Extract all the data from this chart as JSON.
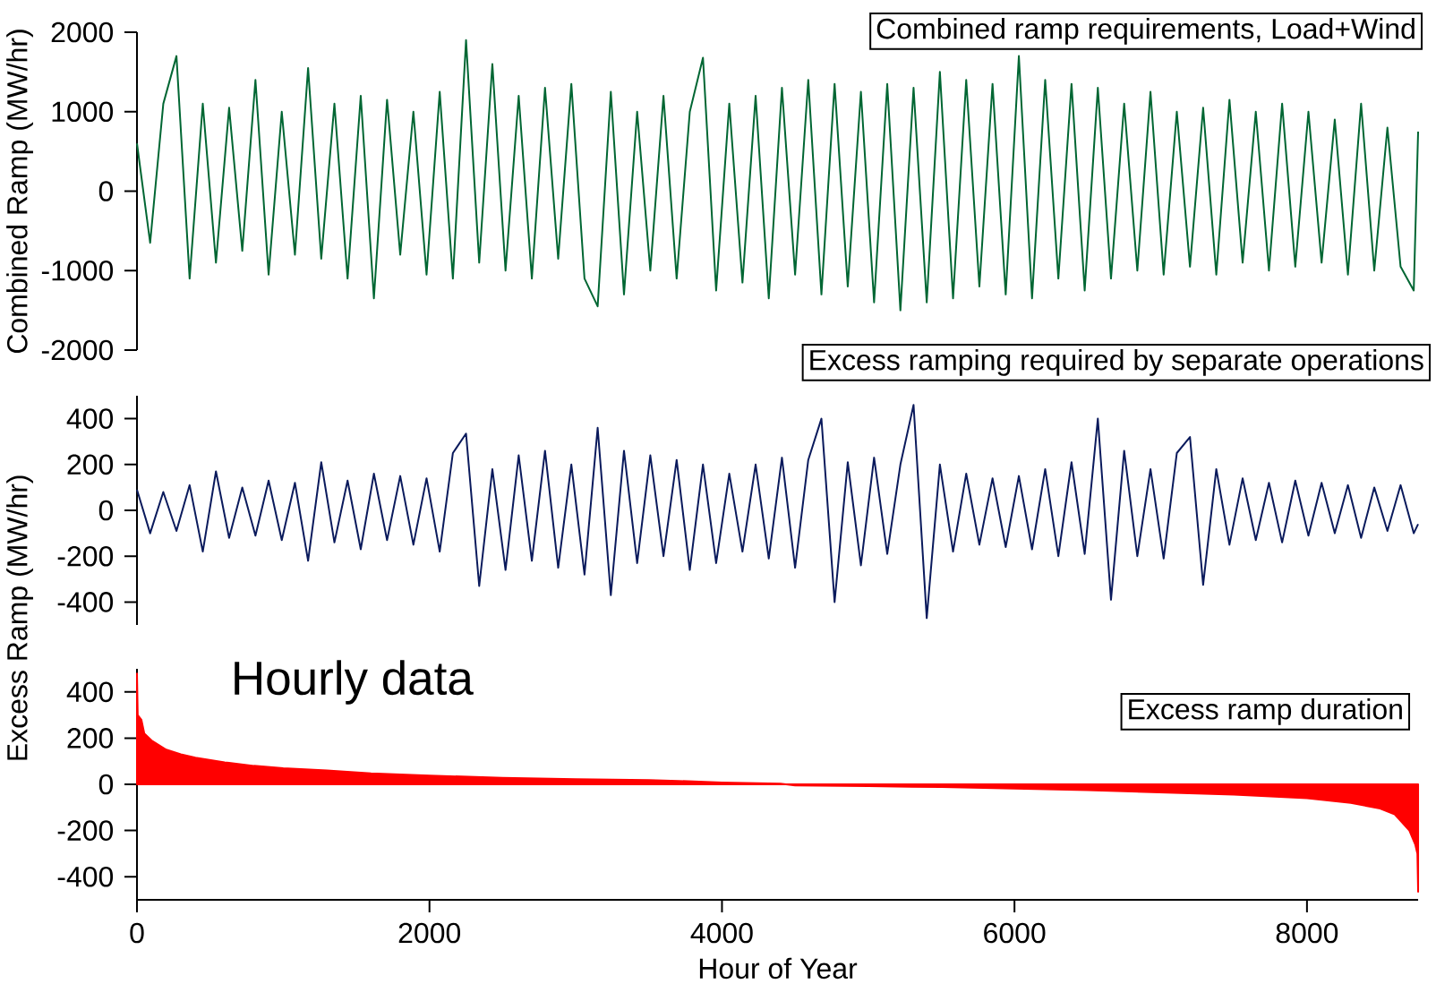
{
  "chart_data": [
    {
      "type": "line",
      "ylabel": "Combined Ramp (MW/hr)",
      "annotations": [
        "Combined ramp requirements, Load+Wind"
      ],
      "xticks": [
        0,
        2000,
        4000,
        6000,
        8000
      ],
      "ylim": [
        -2000,
        2000
      ],
      "yticks": [
        -2000,
        -1000,
        0,
        1000,
        2000
      ],
      "tick_labels": "y",
      "x": [
        0,
        90,
        180,
        270,
        360,
        450,
        540,
        630,
        720,
        810,
        900,
        990,
        1080,
        1170,
        1260,
        1350,
        1440,
        1530,
        1620,
        1710,
        1800,
        1890,
        1980,
        2070,
        2160,
        2250,
        2340,
        2430,
        2520,
        2610,
        2700,
        2790,
        2880,
        2970,
        3060,
        3150,
        3240,
        3330,
        3420,
        3510,
        3600,
        3690,
        3780,
        3870,
        3960,
        4050,
        4140,
        4230,
        4320,
        4410,
        4500,
        4590,
        4680,
        4770,
        4860,
        4950,
        5040,
        5130,
        5220,
        5310,
        5400,
        5490,
        5580,
        5670,
        5760,
        5850,
        5940,
        6030,
        6120,
        6210,
        6300,
        6390,
        6480,
        6570,
        6660,
        6750,
        6840,
        6930,
        7020,
        7110,
        7200,
        7290,
        7380,
        7470,
        7560,
        7650,
        7740,
        7830,
        7920,
        8010,
        8100,
        8190,
        8280,
        8370,
        8460,
        8550,
        8640,
        8730,
        8760
      ],
      "series": [
        {
          "color": "#006633",
          "values": [
            600,
            -650,
            1100,
            1700,
            -1100,
            1100,
            -900,
            1050,
            -750,
            1400,
            -1050,
            1000,
            -800,
            1550,
            -850,
            1100,
            -1100,
            1200,
            -1350,
            1150,
            -800,
            1000,
            -1050,
            1250,
            -1100,
            1900,
            -900,
            1600,
            -1000,
            1200,
            -1100,
            1300,
            -850,
            1350,
            -1100,
            -1450,
            1250,
            -1300,
            1000,
            -1000,
            1200,
            -1100,
            1000,
            1680,
            -1250,
            1100,
            -1150,
            1200,
            -1350,
            1300,
            -1050,
            1400,
            -1300,
            1350,
            -1200,
            1250,
            -1400,
            1350,
            -1500,
            1300,
            -1400,
            1500,
            -1350,
            1400,
            -1200,
            1350,
            -1300,
            1700,
            -1350,
            1400,
            -1100,
            1350,
            -1250,
            1300,
            -1100,
            1100,
            -1000,
            1250,
            -1050,
            1000,
            -950,
            1050,
            -1050,
            1150,
            -900,
            1000,
            -1000,
            1100,
            -950,
            1000,
            -900,
            900,
            -1050,
            1100,
            -1000,
            800,
            -950,
            -1250,
            750
          ]
        }
      ]
    },
    {
      "type": "line",
      "ylabel": "Excess Ramp (MW/hr)",
      "annotations": [
        "Excess ramping required by separate operations"
      ],
      "xticks": [
        0,
        2000,
        4000,
        6000,
        8000
      ],
      "ylim": [
        -500,
        500
      ],
      "yticks": [
        -400,
        -200,
        0,
        200,
        400
      ],
      "tick_labels": "y",
      "x": [
        0,
        90,
        180,
        270,
        360,
        450,
        540,
        630,
        720,
        810,
        900,
        990,
        1080,
        1170,
        1260,
        1350,
        1440,
        1530,
        1620,
        1710,
        1800,
        1890,
        1980,
        2070,
        2160,
        2250,
        2340,
        2430,
        2520,
        2610,
        2700,
        2790,
        2880,
        2970,
        3060,
        3150,
        3240,
        3330,
        3420,
        3510,
        3600,
        3690,
        3780,
        3870,
        3960,
        4050,
        4140,
        4230,
        4320,
        4410,
        4500,
        4590,
        4680,
        4770,
        4860,
        4950,
        5040,
        5130,
        5220,
        5310,
        5400,
        5490,
        5580,
        5670,
        5760,
        5850,
        5940,
        6030,
        6120,
        6210,
        6300,
        6390,
        6480,
        6570,
        6660,
        6750,
        6840,
        6930,
        7020,
        7110,
        7200,
        7290,
        7380,
        7470,
        7560,
        7650,
        7740,
        7830,
        7920,
        8010,
        8100,
        8190,
        8280,
        8370,
        8460,
        8550,
        8640,
        8730,
        8760
      ],
      "series": [
        {
          "color": "#0a1a5c",
          "values": [
            90,
            -100,
            80,
            -90,
            110,
            -180,
            170,
            -120,
            100,
            -110,
            130,
            -130,
            120,
            -220,
            210,
            -140,
            130,
            -170,
            160,
            -130,
            150,
            -150,
            140,
            -180,
            250,
            335,
            -330,
            180,
            -260,
            240,
            -220,
            260,
            -250,
            200,
            -280,
            360,
            -370,
            260,
            -230,
            240,
            -200,
            220,
            -260,
            200,
            -230,
            160,
            -180,
            200,
            -210,
            230,
            -250,
            220,
            400,
            -400,
            210,
            -240,
            230,
            -190,
            200,
            460,
            -470,
            200,
            -180,
            160,
            -150,
            140,
            -160,
            150,
            -170,
            180,
            -200,
            210,
            -190,
            400,
            -390,
            260,
            -200,
            180,
            -210,
            250,
            320,
            -325,
            180,
            -150,
            140,
            -130,
            120,
            -140,
            130,
            -110,
            120,
            -100,
            110,
            -120,
            100,
            -90,
            110,
            -100,
            -60
          ]
        }
      ]
    },
    {
      "type": "area",
      "xlabel": "Hour of Year",
      "annotations": [
        "Hourly data",
        "Excess ramp duration"
      ],
      "xlim": [
        0,
        8760
      ],
      "ylim": [
        -500,
        500
      ],
      "xticks": [
        0,
        2000,
        4000,
        6000,
        8000
      ],
      "yticks": [
        -400,
        -200,
        0,
        200,
        400
      ],
      "x": [
        0,
        5,
        30,
        50,
        100,
        200,
        300,
        400,
        600,
        800,
        1000,
        1300,
        1600,
        2000,
        2500,
        3000,
        3500,
        3700,
        4000,
        4400,
        4500,
        5000,
        5500,
        6000,
        6500,
        7000,
        7500,
        8000,
        8300,
        8500,
        8600,
        8700,
        8740,
        8755,
        8760
      ],
      "series": [
        {
          "color": "#ff0000",
          "values": [
            480,
            300,
            280,
            220,
            190,
            150,
            130,
            115,
            95,
            80,
            70,
            60,
            48,
            38,
            28,
            22,
            18,
            15,
            8,
            3,
            -5,
            -8,
            -12,
            -18,
            -25,
            -35,
            -45,
            -60,
            -80,
            -105,
            -130,
            -200,
            -260,
            -300,
            -465
          ]
        }
      ]
    }
  ]
}
